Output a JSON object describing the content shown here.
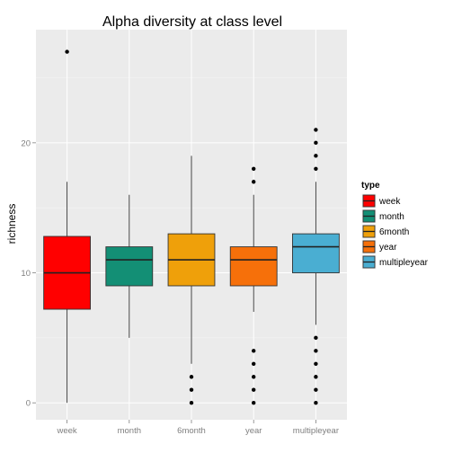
{
  "chart_data": {
    "type": "boxplot",
    "title": "Alpha diversity at class level",
    "xlabel": "",
    "ylabel": "richness",
    "ylim": [
      -1.3,
      28.7
    ],
    "yticks": [
      0,
      10,
      20
    ],
    "grid": true,
    "legend": {
      "title": "type",
      "position": "right"
    },
    "categories": [
      "week",
      "month",
      "6month",
      "year",
      "multipleyear"
    ],
    "series": [
      {
        "name": "week",
        "color": "#FF0000",
        "min": 0,
        "q1": 7.2,
        "median": 10,
        "q3": 12.8,
        "max": 17,
        "outliers": [
          27
        ]
      },
      {
        "name": "month",
        "color": "#138F75",
        "min": 5,
        "q1": 9,
        "median": 11,
        "q3": 12,
        "max": 16,
        "outliers": []
      },
      {
        "name": "6month",
        "color": "#EFA00A",
        "min": 3,
        "q1": 9,
        "median": 11,
        "q3": 13,
        "max": 19,
        "outliers": [
          2,
          1,
          0
        ]
      },
      {
        "name": "year",
        "color": "#F6700A",
        "min": 7,
        "q1": 9,
        "median": 11,
        "q3": 12,
        "max": 16,
        "outliers": [
          18,
          17,
          4,
          3,
          2,
          1,
          0
        ]
      },
      {
        "name": "multipleyear",
        "color": "#4AAED2",
        "min": 6,
        "q1": 10,
        "median": 12,
        "q3": 13,
        "max": 17,
        "outliers": [
          21,
          20,
          19,
          18,
          5,
          4,
          3,
          2,
          1,
          0
        ]
      }
    ]
  }
}
